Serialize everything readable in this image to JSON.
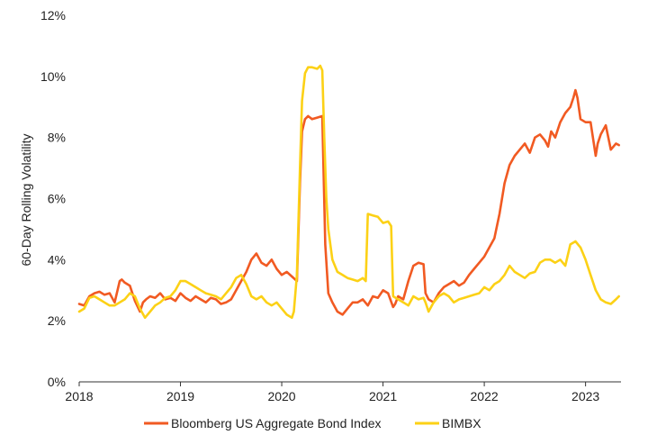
{
  "chart_data": {
    "type": "line",
    "title": "",
    "xlabel": "",
    "ylabel": "60-Day Rolling Volatility",
    "xlim": [
      2018,
      2023.35
    ],
    "ylim": [
      0,
      12
    ],
    "x_ticks": [
      2018,
      2019,
      2020,
      2021,
      2022,
      2023
    ],
    "x_tick_labels": [
      "2018",
      "2019",
      "2020",
      "2021",
      "2022",
      "2023"
    ],
    "y_ticks": [
      0,
      2,
      4,
      6,
      8,
      10,
      12
    ],
    "y_tick_labels": [
      "0%",
      "2%",
      "4%",
      "6%",
      "8%",
      "10%",
      "12%"
    ],
    "grid": false,
    "legend_position": "bottom",
    "series": [
      {
        "name": "Bloomberg US Aggregate Bond Index",
        "color": "#f15a22",
        "x": [
          2018.0,
          2018.05,
          2018.1,
          2018.15,
          2018.2,
          2018.25,
          2018.3,
          2018.35,
          2018.4,
          2018.42,
          2018.45,
          2018.5,
          2018.55,
          2018.6,
          2018.63,
          2018.66,
          2018.7,
          2018.75,
          2018.8,
          2018.85,
          2018.9,
          2018.95,
          2019.0,
          2019.05,
          2019.1,
          2019.15,
          2019.2,
          2019.25,
          2019.3,
          2019.35,
          2019.4,
          2019.45,
          2019.5,
          2019.55,
          2019.6,
          2019.65,
          2019.7,
          2019.75,
          2019.8,
          2019.85,
          2019.9,
          2019.95,
          2020.0,
          2020.05,
          2020.1,
          2020.15,
          2020.18,
          2020.2,
          2020.23,
          2020.26,
          2020.3,
          2020.35,
          2020.4,
          2020.43,
          2020.46,
          2020.5,
          2020.55,
          2020.6,
          2020.65,
          2020.7,
          2020.75,
          2020.8,
          2020.85,
          2020.9,
          2020.95,
          2021.0,
          2021.05,
          2021.1,
          2021.12,
          2021.15,
          2021.2,
          2021.25,
          2021.3,
          2021.35,
          2021.4,
          2021.42,
          2021.45,
          2021.5,
          2021.55,
          2021.6,
          2021.65,
          2021.7,
          2021.75,
          2021.8,
          2021.85,
          2021.9,
          2021.95,
          2022.0,
          2022.05,
          2022.1,
          2022.15,
          2022.2,
          2022.25,
          2022.3,
          2022.35,
          2022.4,
          2022.45,
          2022.5,
          2022.55,
          2022.6,
          2022.63,
          2022.66,
          2022.7,
          2022.75,
          2022.8,
          2022.85,
          2022.88,
          2022.9,
          2022.92,
          2022.95,
          2023.0,
          2023.05,
          2023.1,
          2023.12,
          2023.15,
          2023.2,
          2023.25,
          2023.3,
          2023.33
        ],
        "values": [
          2.55,
          2.5,
          2.8,
          2.9,
          2.95,
          2.85,
          2.9,
          2.6,
          3.3,
          3.35,
          3.25,
          3.15,
          2.65,
          2.3,
          2.6,
          2.7,
          2.8,
          2.75,
          2.9,
          2.7,
          2.75,
          2.65,
          2.9,
          2.75,
          2.65,
          2.8,
          2.7,
          2.6,
          2.75,
          2.7,
          2.55,
          2.6,
          2.7,
          3.0,
          3.3,
          3.6,
          4.0,
          4.2,
          3.9,
          3.8,
          4.0,
          3.7,
          3.5,
          3.6,
          3.45,
          3.3,
          6.5,
          8.2,
          8.6,
          8.7,
          8.6,
          8.65,
          8.7,
          4.5,
          2.9,
          2.6,
          2.3,
          2.2,
          2.4,
          2.6,
          2.6,
          2.7,
          2.5,
          2.8,
          2.75,
          3.0,
          2.9,
          2.45,
          2.55,
          2.8,
          2.7,
          3.3,
          3.8,
          3.9,
          3.85,
          2.9,
          2.7,
          2.6,
          2.9,
          3.1,
          3.2,
          3.3,
          3.15,
          3.25,
          3.5,
          3.7,
          3.9,
          4.1,
          4.4,
          4.7,
          5.5,
          6.5,
          7.1,
          7.4,
          7.6,
          7.8,
          7.5,
          8.0,
          8.1,
          7.9,
          7.7,
          8.2,
          8.0,
          8.5,
          8.8,
          9.0,
          9.3,
          9.55,
          9.3,
          8.6,
          8.5,
          8.5,
          7.4,
          7.8,
          8.1,
          8.4,
          7.6,
          7.8,
          7.75
        ]
      },
      {
        "name": "BIMBX",
        "color": "#fcd116",
        "x": [
          2018.0,
          2018.05,
          2018.1,
          2018.15,
          2018.2,
          2018.25,
          2018.3,
          2018.35,
          2018.4,
          2018.45,
          2018.5,
          2018.55,
          2018.6,
          2018.65,
          2018.7,
          2018.75,
          2018.8,
          2018.85,
          2018.9,
          2018.95,
          2019.0,
          2019.05,
          2019.1,
          2019.15,
          2019.2,
          2019.25,
          2019.3,
          2019.35,
          2019.4,
          2019.45,
          2019.5,
          2019.55,
          2019.6,
          2019.65,
          2019.7,
          2019.75,
          2019.8,
          2019.85,
          2019.9,
          2019.95,
          2020.0,
          2020.05,
          2020.1,
          2020.12,
          2020.15,
          2020.18,
          2020.2,
          2020.23,
          2020.26,
          2020.3,
          2020.35,
          2020.38,
          2020.4,
          2020.42,
          2020.44,
          2020.46,
          2020.5,
          2020.55,
          2020.6,
          2020.65,
          2020.7,
          2020.75,
          2020.8,
          2020.83,
          2020.85,
          2020.9,
          2020.95,
          2021.0,
          2021.05,
          2021.08,
          2021.1,
          2021.15,
          2021.2,
          2021.25,
          2021.3,
          2021.35,
          2021.4,
          2021.42,
          2021.45,
          2021.5,
          2021.55,
          2021.6,
          2021.65,
          2021.7,
          2021.75,
          2021.8,
          2021.85,
          2021.9,
          2021.95,
          2022.0,
          2022.05,
          2022.1,
          2022.15,
          2022.2,
          2022.25,
          2022.3,
          2022.35,
          2022.4,
          2022.45,
          2022.5,
          2022.55,
          2022.6,
          2022.65,
          2022.7,
          2022.75,
          2022.8,
          2022.85,
          2022.9,
          2022.95,
          2023.0,
          2023.05,
          2023.1,
          2023.15,
          2023.2,
          2023.25,
          2023.3,
          2023.33
        ],
        "values": [
          2.3,
          2.4,
          2.75,
          2.8,
          2.7,
          2.6,
          2.5,
          2.5,
          2.6,
          2.7,
          2.9,
          2.8,
          2.4,
          2.1,
          2.3,
          2.5,
          2.6,
          2.75,
          2.8,
          3.0,
          3.3,
          3.3,
          3.2,
          3.1,
          3.0,
          2.9,
          2.85,
          2.8,
          2.7,
          2.9,
          3.1,
          3.4,
          3.5,
          3.2,
          2.8,
          2.7,
          2.8,
          2.6,
          2.5,
          2.6,
          2.4,
          2.2,
          2.1,
          2.3,
          3.5,
          7.0,
          9.2,
          10.1,
          10.3,
          10.3,
          10.25,
          10.35,
          10.2,
          8.0,
          6.0,
          5.0,
          4.0,
          3.6,
          3.5,
          3.4,
          3.35,
          3.3,
          3.4,
          3.3,
          5.5,
          5.45,
          5.4,
          5.2,
          5.25,
          5.1,
          2.8,
          2.7,
          2.6,
          2.5,
          2.8,
          2.7,
          2.75,
          2.6,
          2.3,
          2.6,
          2.8,
          2.9,
          2.8,
          2.6,
          2.7,
          2.75,
          2.8,
          2.85,
          2.9,
          3.1,
          3.0,
          3.2,
          3.3,
          3.5,
          3.8,
          3.6,
          3.5,
          3.4,
          3.55,
          3.6,
          3.9,
          4.0,
          4.0,
          3.9,
          4.0,
          3.8,
          4.5,
          4.6,
          4.4,
          4.0,
          3.5,
          3.0,
          2.7,
          2.6,
          2.55,
          2.7,
          2.8
        ]
      }
    ]
  }
}
